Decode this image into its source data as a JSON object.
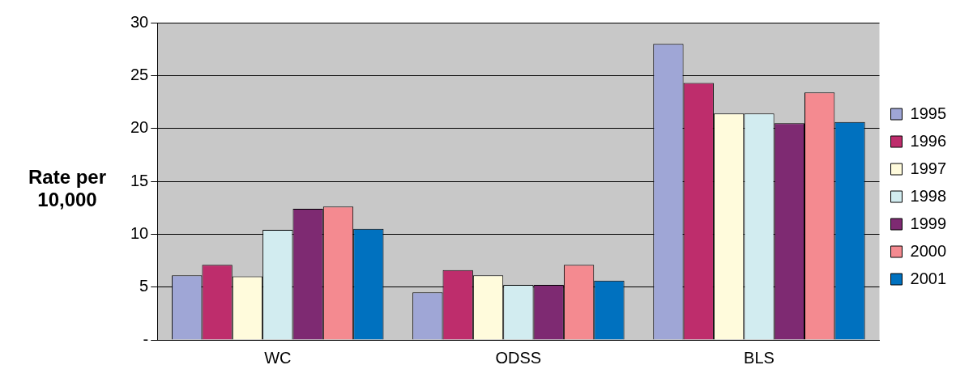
{
  "chart_data": {
    "type": "bar",
    "ylabel": "Rate per 10,000",
    "categories": [
      "WC",
      "ODSS",
      "BLS"
    ],
    "series": [
      {
        "name": "1995",
        "color": "#9fa6d6",
        "values": [
          6.1,
          4.5,
          28
        ]
      },
      {
        "name": "1996",
        "color": "#be2d6c",
        "values": [
          7.1,
          6.6,
          24.3
        ]
      },
      {
        "name": "1997",
        "color": "#fffbdc",
        "values": [
          6,
          6.1,
          21.4
        ]
      },
      {
        "name": "1998",
        "color": "#d2ecf0",
        "values": [
          10.4,
          5.2,
          21.4
        ]
      },
      {
        "name": "1999",
        "color": "#7e2a72",
        "values": [
          12.4,
          5.2,
          20.5
        ]
      },
      {
        "name": "2000",
        "color": "#f48a90",
        "values": [
          12.6,
          7.1,
          23.4
        ]
      },
      {
        "name": "2001",
        "color": "#0071bf",
        "values": [
          10.5,
          5.6,
          20.6
        ]
      }
    ],
    "ylim": [
      0,
      30
    ],
    "yticks": [
      {
        "value": 0,
        "label": "-"
      },
      5,
      10,
      15,
      20,
      25,
      30
    ],
    "grid": "y",
    "legend": "right"
  }
}
